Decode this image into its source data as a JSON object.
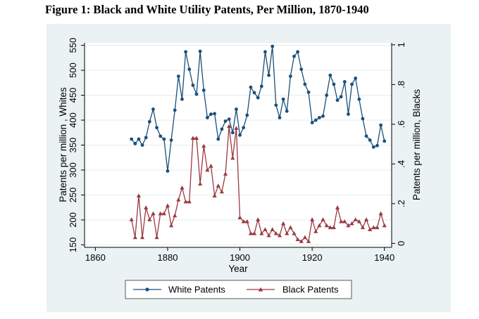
{
  "figure_title": "Figure 1: Black and White Utility Patents, Per Million, 1870-1940",
  "chart_data": {
    "type": "line",
    "title": "Figure 1: Black and White Utility Patents, Per Million, 1870-1940",
    "xlabel": "Year",
    "ylabel_left": "Patents per million , Whites",
    "ylabel_right": "Patents per million, Blacks",
    "xlim": [
      1857,
      1942
    ],
    "ylim_left": [
      145,
      555
    ],
    "ylim_right": [
      -0.02,
      1.01
    ],
    "x_ticks": [
      1860,
      1880,
      1900,
      1920,
      1940
    ],
    "y_left_ticks": [
      150,
      200,
      250,
      300,
      350,
      400,
      450,
      500,
      550
    ],
    "y_right_ticks": [
      0,
      0.2,
      0.4,
      0.6,
      0.8,
      1
    ],
    "y_right_tick_labels": [
      "0",
      ".2",
      ".4",
      ".6",
      ".8",
      "1"
    ],
    "grid": "horizontal",
    "legend_position": "bottom",
    "colors": {
      "white": "#1a4f7a",
      "black": "#9a3a42",
      "background": "#eaf2f3",
      "plot": "#ffffff"
    },
    "series": [
      {
        "name": "White Patents",
        "axis": "left",
        "marker": "circle",
        "x": [
          1870,
          1871,
          1872,
          1873,
          1874,
          1875,
          1876,
          1877,
          1878,
          1879,
          1880,
          1881,
          1882,
          1883,
          1884,
          1885,
          1886,
          1887,
          1888,
          1889,
          1890,
          1891,
          1892,
          1893,
          1894,
          1895,
          1896,
          1897,
          1898,
          1899,
          1900,
          1901,
          1902,
          1903,
          1904,
          1905,
          1906,
          1907,
          1908,
          1909,
          1910,
          1911,
          1912,
          1913,
          1914,
          1915,
          1916,
          1917,
          1918,
          1919,
          1920,
          1921,
          1922,
          1923,
          1924,
          1925,
          1926,
          1927,
          1928,
          1929,
          1930,
          1931,
          1932,
          1933,
          1934,
          1935,
          1936,
          1937,
          1938,
          1939,
          1940
        ],
        "values": [
          362,
          353,
          362,
          350,
          365,
          397,
          422,
          385,
          368,
          362,
          298,
          360,
          420,
          488,
          442,
          537,
          502,
          470,
          452,
          538,
          460,
          405,
          412,
          413,
          362,
          382,
          398,
          402,
          375,
          422,
          370,
          385,
          410,
          466,
          455,
          445,
          468,
          537,
          490,
          548,
          430,
          405,
          442,
          418,
          488,
          528,
          537,
          502,
          472,
          456,
          395,
          400,
          405,
          408,
          450,
          490,
          472,
          440,
          447,
          477,
          412,
          472,
          484,
          442,
          403,
          368,
          360,
          346,
          349,
          390,
          358
        ]
      },
      {
        "name": "Black Patents",
        "axis": "right",
        "marker": "triangle",
        "x": [
          1870,
          1871,
          1872,
          1873,
          1874,
          1875,
          1876,
          1877,
          1878,
          1879,
          1880,
          1881,
          1882,
          1883,
          1884,
          1885,
          1886,
          1887,
          1888,
          1889,
          1890,
          1891,
          1892,
          1893,
          1894,
          1895,
          1896,
          1897,
          1898,
          1899,
          1900,
          1901,
          1902,
          1903,
          1904,
          1905,
          1906,
          1907,
          1908,
          1909,
          1910,
          1911,
          1912,
          1913,
          1914,
          1915,
          1916,
          1917,
          1918,
          1919,
          1920,
          1921,
          1922,
          1923,
          1924,
          1925,
          1926,
          1927,
          1928,
          1929,
          1930,
          1931,
          1932,
          1933,
          1934,
          1935,
          1936,
          1937,
          1938,
          1939,
          1940
        ],
        "values": [
          0.12,
          0.03,
          0.24,
          0.03,
          0.18,
          0.12,
          0.15,
          0.03,
          0.15,
          0.15,
          0.19,
          0.09,
          0.14,
          0.22,
          0.28,
          0.21,
          0.21,
          0.53,
          0.53,
          0.3,
          0.49,
          0.37,
          0.39,
          0.24,
          0.29,
          0.26,
          0.35,
          0.59,
          0.43,
          0.58,
          0.13,
          0.11,
          0.11,
          0.05,
          0.05,
          0.12,
          0.05,
          0.07,
          0.04,
          0.07,
          0.05,
          0.04,
          0.1,
          0.05,
          0.08,
          0.05,
          0.02,
          0.01,
          0.03,
          0.01,
          0.12,
          0.06,
          0.09,
          0.12,
          0.09,
          0.08,
          0.08,
          0.18,
          0.11,
          0.11,
          0.09,
          0.1,
          0.12,
          0.11,
          0.08,
          0.12,
          0.07,
          0.08,
          0.08,
          0.15,
          0.09
        ]
      }
    ]
  }
}
